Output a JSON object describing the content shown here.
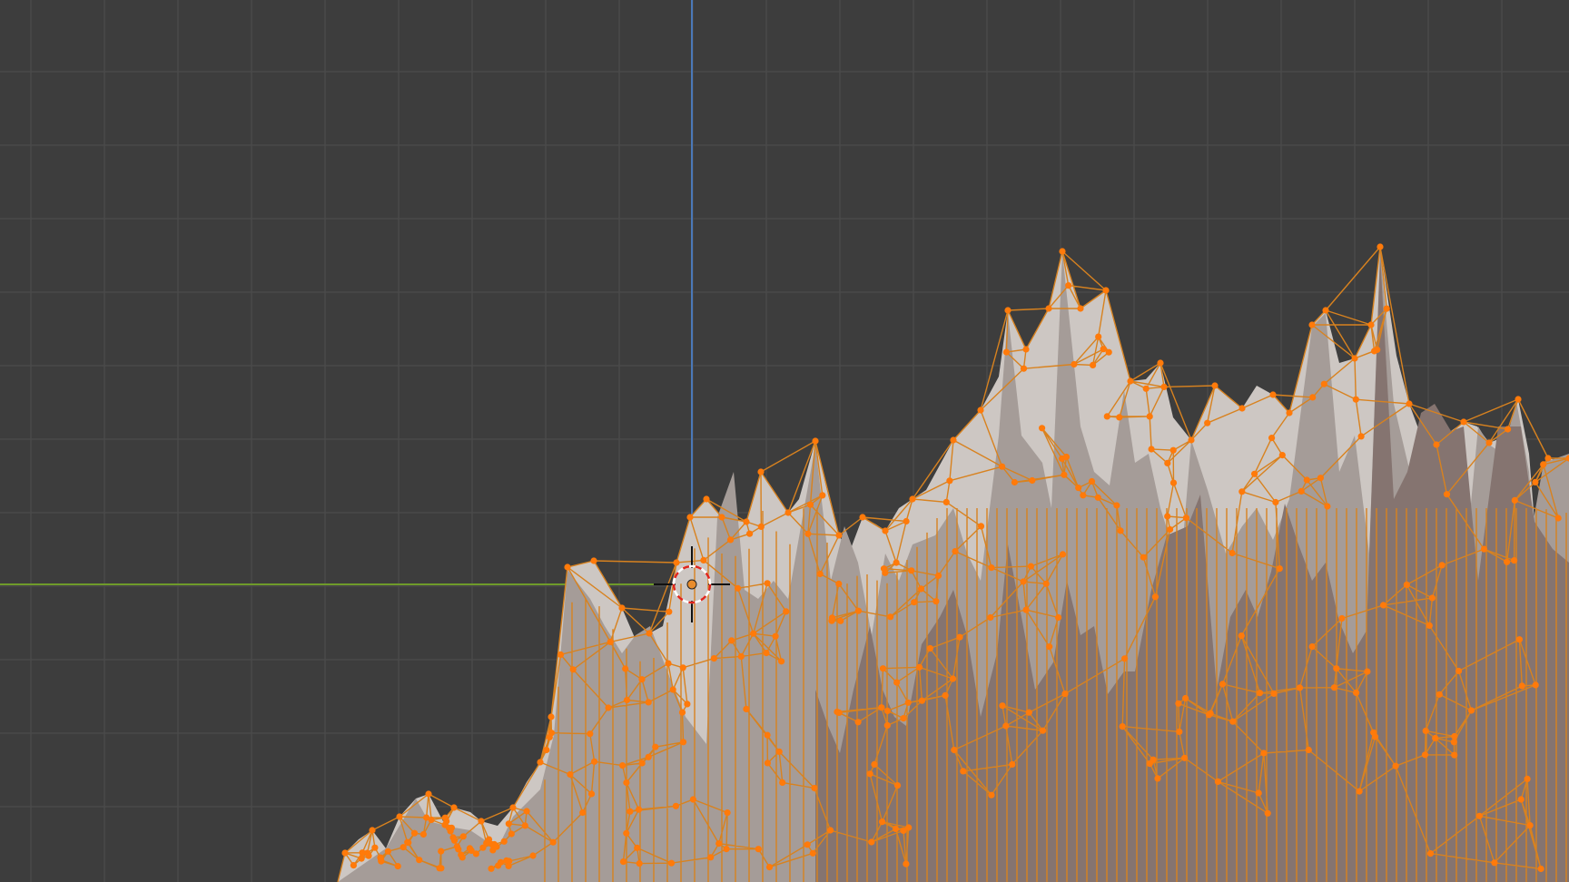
{
  "viewport": {
    "background": "#3d3d3d",
    "grid_color": "#4a4a4a",
    "x_axis_color": "#6f9a2a",
    "y_axis_color": "#4a78b8",
    "mesh_face_light": "#cdc7c3",
    "mesh_face_mid": "#a59c98",
    "mesh_face_dark": "#857470",
    "mesh_edge_color": "#d8821f",
    "vertex_color": "#ff7a0a",
    "cursor_icon": "3d-cursor-icon",
    "origin_icon": "object-origin-icon"
  }
}
